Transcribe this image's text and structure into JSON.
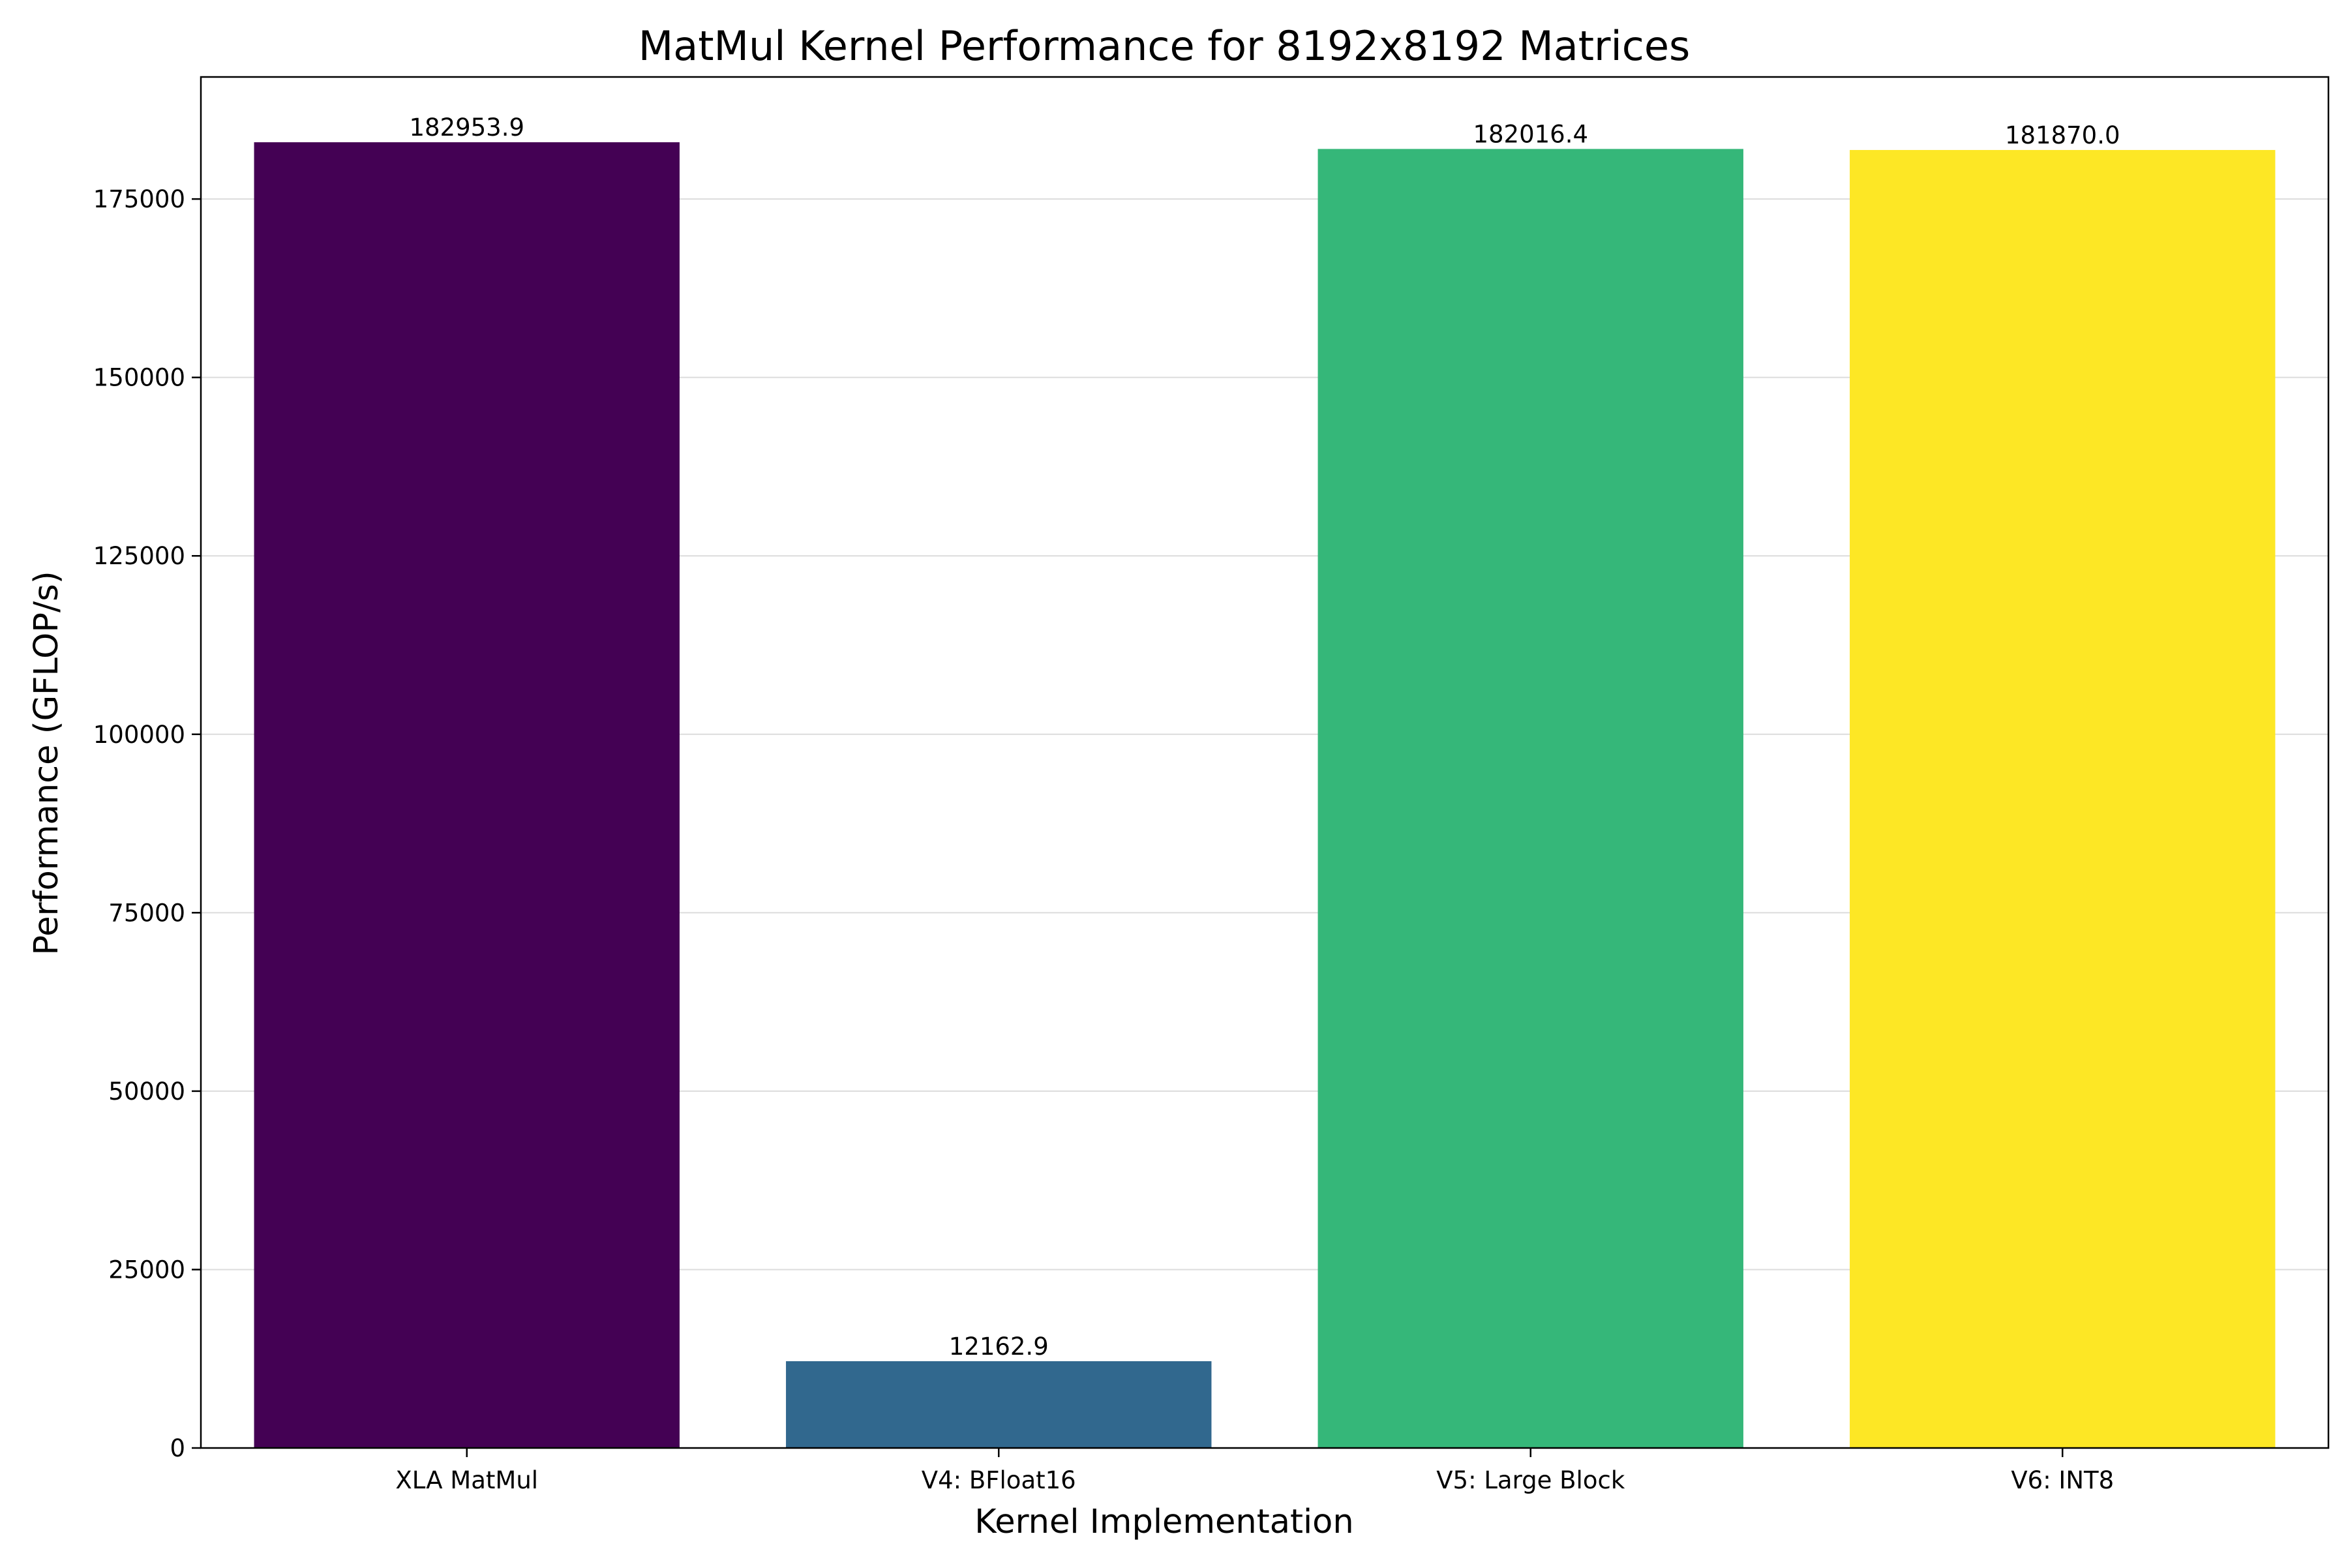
{
  "chart_data": {
    "type": "bar",
    "title": "MatMul Kernel Performance for 8192x8192 Matrices",
    "xlabel": "Kernel Implementation",
    "ylabel": "Performance (GFLOP/s)",
    "categories": [
      "XLA MatMul",
      "V4: BFloat16",
      "V5: Large Block",
      "V6: INT8"
    ],
    "values": [
      182953.9,
      12162.9,
      182016.4,
      181870.0
    ],
    "value_labels": [
      "182953.9",
      "12162.9",
      "182016.4",
      "181870.0"
    ],
    "colors": [
      "#440154",
      "#31688e",
      "#35b779",
      "#fde725"
    ],
    "ylim": [
      0,
      192101.6
    ],
    "yticks": [
      0,
      25000,
      50000,
      75000,
      100000,
      125000,
      150000,
      175000
    ],
    "ytick_labels": [
      "0",
      "25000",
      "50000",
      "75000",
      "100000",
      "125000",
      "150000",
      "175000"
    ],
    "grid": "y-major",
    "legend": "none"
  }
}
